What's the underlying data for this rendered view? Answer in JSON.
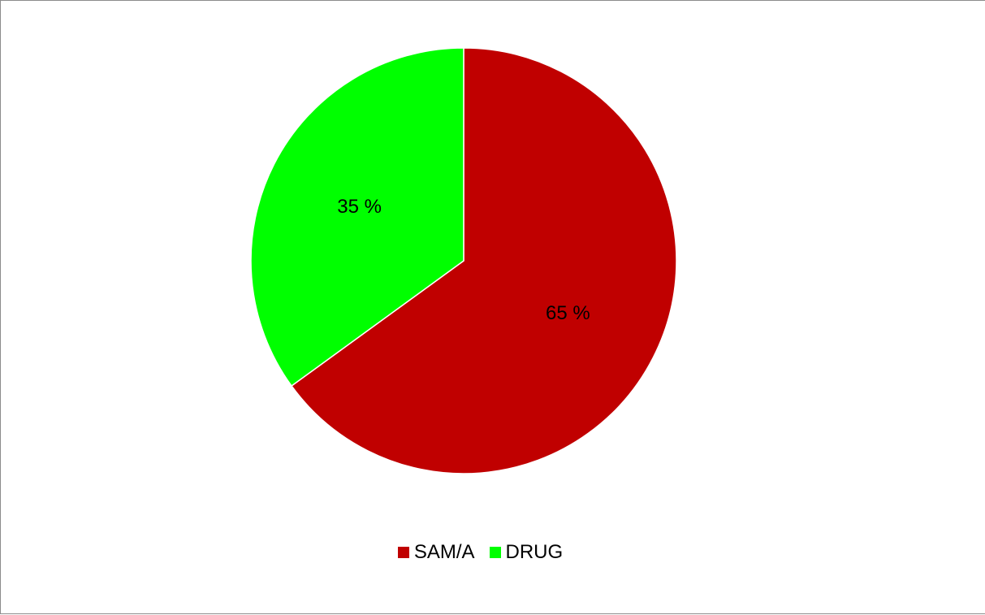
{
  "chart_data": {
    "type": "pie",
    "categories": [
      "SAM/A",
      "DRUG"
    ],
    "values": [
      65,
      35
    ],
    "data_labels": [
      "65 %",
      "35 %"
    ],
    "colors": [
      "#c00000",
      "#00ff00"
    ],
    "legend": {
      "placement": "bottom",
      "entries": [
        "SAM/A",
        "DRUG"
      ]
    }
  }
}
